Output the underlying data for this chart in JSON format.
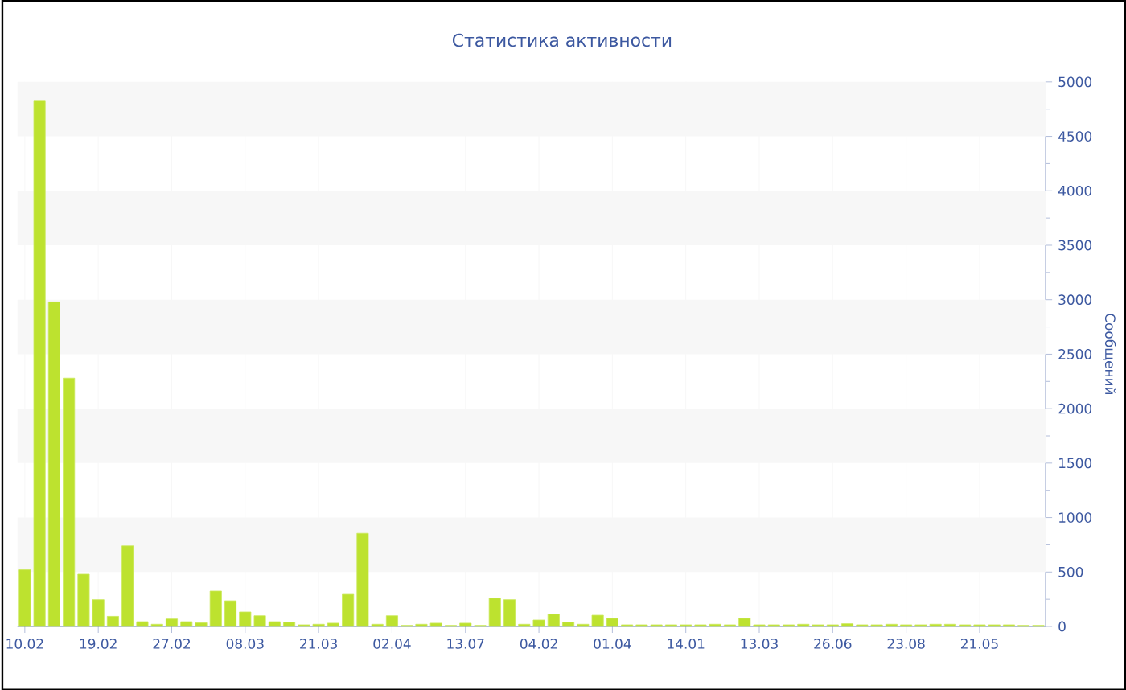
{
  "chart_data": {
    "type": "bar",
    "title": "Статистика активности",
    "ylabel": "Сообщений",
    "categories": [
      "10.02",
      null,
      null,
      null,
      null,
      "19.02",
      null,
      null,
      null,
      null,
      "27.02",
      null,
      null,
      null,
      null,
      "08.03",
      null,
      null,
      null,
      null,
      "21.03",
      null,
      null,
      null,
      null,
      "02.04",
      null,
      null,
      null,
      null,
      "13.07",
      null,
      null,
      null,
      null,
      "04.02",
      null,
      null,
      null,
      null,
      "01.04",
      null,
      null,
      null,
      null,
      "14.01",
      null,
      null,
      null,
      null,
      "13.03",
      null,
      null,
      null,
      null,
      "26.06",
      null,
      null,
      null,
      null,
      "23.08",
      null,
      null,
      null,
      null,
      "21.05",
      null,
      null,
      null,
      null
    ],
    "values": [
      520,
      4830,
      2980,
      2280,
      480,
      246,
      93,
      740,
      44,
      20,
      69,
      44,
      34,
      325,
      236,
      133,
      98,
      44,
      39,
      15,
      20,
      30,
      295,
      855,
      20,
      98,
      10,
      20,
      30,
      10,
      30,
      10,
      260,
      246,
      20,
      59,
      113,
      39,
      20,
      103,
      74,
      15,
      15,
      15,
      15,
      15,
      15,
      20,
      15,
      74,
      15,
      15,
      15,
      20,
      15,
      15,
      25,
      15,
      15,
      20,
      15,
      15,
      20,
      20,
      15,
      15,
      15,
      15,
      10,
      10
    ],
    "color": "#bde22f",
    "ylim": [
      0,
      5000
    ],
    "yticks": [
      0,
      500,
      1000,
      1500,
      2000,
      2500,
      3000,
      3500,
      4000,
      4500,
      5000
    ],
    "grid": true
  }
}
